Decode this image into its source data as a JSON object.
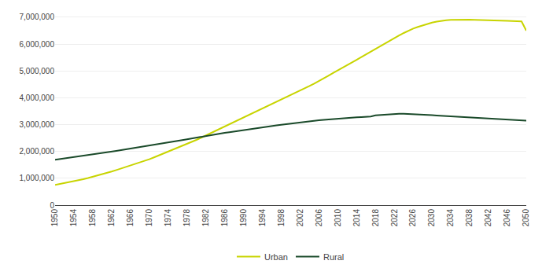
{
  "chart_data": {
    "type": "line",
    "x": [
      1950,
      1951,
      1952,
      1953,
      1954,
      1955,
      1956,
      1957,
      1958,
      1959,
      1960,
      1961,
      1962,
      1963,
      1964,
      1965,
      1966,
      1967,
      1968,
      1969,
      1970,
      1971,
      1972,
      1973,
      1974,
      1975,
      1976,
      1977,
      1978,
      1979,
      1980,
      1981,
      1982,
      1983,
      1984,
      1985,
      1986,
      1987,
      1988,
      1989,
      1990,
      1991,
      1992,
      1993,
      1994,
      1995,
      1996,
      1997,
      1998,
      1999,
      2000,
      2001,
      2002,
      2003,
      2004,
      2005,
      2006,
      2007,
      2008,
      2009,
      2010,
      2011,
      2012,
      2013,
      2014,
      2015,
      2016,
      2017,
      2018,
      2019,
      2020,
      2021,
      2022,
      2023,
      2024,
      2025,
      2026,
      2027,
      2028,
      2029,
      2030,
      2031,
      2032,
      2033,
      2034,
      2035,
      2036,
      2037,
      2038,
      2039,
      2040,
      2041,
      2042,
      2043,
      2044,
      2045,
      2046,
      2047,
      2048,
      2049,
      2050
    ],
    "series": [
      {
        "name": "Urban",
        "color": "#c8d400",
        "values": [
          751000,
          784000,
          818000,
          853000,
          889000,
          928000,
          968000,
          1010000,
          1054000,
          1100000,
          1148000,
          1199000,
          1252000,
          1307000,
          1362000,
          1418000,
          1472000,
          1528000,
          1586000,
          1647000,
          1710000,
          1778000,
          1848000,
          1920000,
          1992000,
          2065000,
          2136000,
          2206000,
          2278000,
          2352000,
          2430000,
          2510000,
          2593000,
          2676000,
          2760000,
          2843000,
          2930000,
          3018000,
          3101000,
          3184000,
          3270000,
          3353000,
          3436000,
          3518000,
          3600000,
          3680000,
          3760000,
          3842000,
          3920000,
          3999000,
          4081000,
          4167000,
          4255000,
          4345000,
          4435000,
          4524000,
          4615000,
          4714000,
          4816000,
          4920000,
          5023000,
          5120000,
          5213000,
          5310000,
          5410000,
          5512000,
          5614000,
          5721000,
          5827000,
          5924000,
          6018000,
          6113000,
          6212000,
          6317000,
          6410000,
          6495000,
          6576000,
          6638000,
          6698000,
          6756000,
          6800000,
          6835000,
          6864000,
          6888000,
          6899000,
          6905000,
          6907000,
          6907000,
          6906000,
          6903000,
          6900000,
          6897000,
          6892000,
          6886000,
          6879000,
          6873000,
          6865000,
          6856000,
          6850000,
          6842000,
          6500000
        ]
      },
      {
        "name": "Rural",
        "color": "#1a4a2a",
        "values": [
          1690000,
          1714000,
          1737000,
          1760000,
          1784000,
          1808000,
          1833000,
          1858000,
          1884000,
          1910000,
          1937000,
          1965000,
          1993000,
          2021000,
          2049000,
          2076000,
          2103000,
          2130000,
          2158000,
          2186000,
          2214000,
          2242000,
          2271000,
          2300000,
          2330000,
          2360000,
          2390000,
          2421000,
          2453000,
          2485000,
          2517000,
          2548000,
          2577000,
          2606000,
          2635000,
          2664000,
          2691000,
          2718000,
          2745000,
          2772000,
          2798000,
          2824000,
          2849000,
          2873000,
          2898000,
          2921000,
          2945000,
          2969000,
          2993000,
          3016000,
          3038000,
          3059000,
          3080000,
          3100000,
          3120000,
          3140000,
          3160000,
          3178000,
          3194000,
          3210000,
          3224000,
          3237000,
          3248000,
          3259000,
          3270000,
          3280000,
          3290000,
          3300000,
          3345000,
          3360000,
          3375000,
          3385000,
          3395000,
          3400000,
          3400000,
          3395000,
          3390000,
          3380000,
          3370000,
          3360000,
          3350000,
          3340000,
          3330000,
          3320000,
          3310000,
          3300000,
          3290000,
          3280000,
          3270000,
          3260000,
          3250000,
          3240000,
          3230000,
          3220000,
          3210000,
          3200000,
          3190000,
          3180000,
          3170000,
          3160000,
          3150000
        ]
      }
    ],
    "xlim": [
      1950,
      2050
    ],
    "xticks": [
      1950,
      1954,
      1958,
      1962,
      1966,
      1970,
      1974,
      1978,
      1982,
      1986,
      1990,
      1994,
      1998,
      2002,
      2006,
      2010,
      2014,
      2018,
      2022,
      2026,
      2030,
      2034,
      2038,
      2042,
      2046,
      2050
    ],
    "ylim": [
      0,
      7200000
    ],
    "yticks": [
      0,
      {
        "value": 1000000,
        "label": "1,000,000"
      },
      {
        "value": 2000000,
        "label": "2,000,000"
      },
      {
        "value": 3000000,
        "label": "3,000,000"
      },
      {
        "value": 4000000,
        "label": "4,000,000"
      },
      {
        "value": 5000000,
        "label": "5,000,000"
      },
      {
        "value": 6000000,
        "label": "6,000,000"
      },
      {
        "value": 7000000,
        "label": "7,000,000"
      }
    ],
    "grid": "y",
    "legend": "bottom"
  }
}
